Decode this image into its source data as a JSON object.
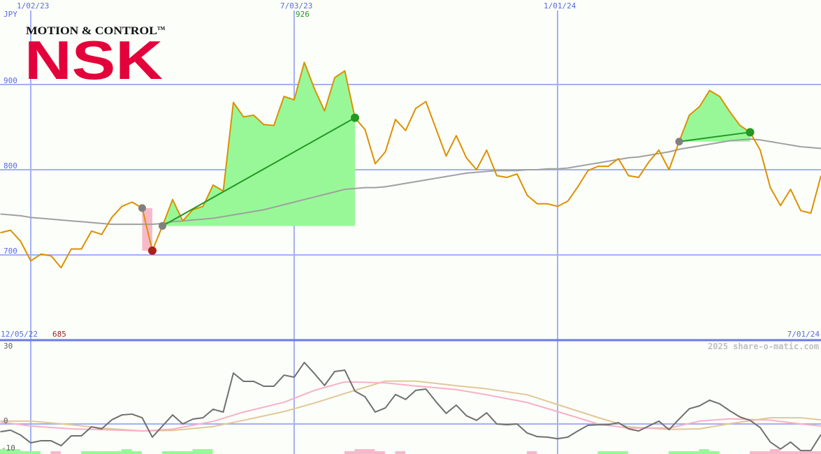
{
  "chart_data": [
    {
      "type": "line",
      "currency_label": "JPY",
      "x_tick_labels": [
        "1/02/23",
        "7/03/23",
        "1/01/24"
      ],
      "x_tick_dates": [
        "2023-01-02",
        "2023-07-03",
        "2024-01-01"
      ],
      "range_start_label": "12/05/22",
      "range_end_label": "7/01/24",
      "y_ticks": [
        900,
        800,
        700
      ],
      "ylim": [
        650,
        1000
      ],
      "grid": true,
      "high_label": "926",
      "low_label": "685",
      "dates": [
        "2022-12-12",
        "2022-12-19",
        "2022-12-26",
        "2023-01-02",
        "2023-01-09",
        "2023-01-16",
        "2023-01-23",
        "2023-01-30",
        "2023-02-06",
        "2023-02-13",
        "2023-02-20",
        "2023-02-27",
        "2023-03-06",
        "2023-03-13",
        "2023-03-20",
        "2023-03-27",
        "2023-04-03",
        "2023-04-10",
        "2023-04-17",
        "2023-04-24",
        "2023-05-01",
        "2023-05-08",
        "2023-05-15",
        "2023-05-22",
        "2023-05-29",
        "2023-06-05",
        "2023-06-12",
        "2023-06-19",
        "2023-06-26",
        "2023-07-03",
        "2023-07-10",
        "2023-07-17",
        "2023-07-24",
        "2023-07-31",
        "2023-08-07",
        "2023-08-14",
        "2023-08-21",
        "2023-08-28",
        "2023-09-04",
        "2023-09-11",
        "2023-09-18",
        "2023-09-25",
        "2023-10-02",
        "2023-10-09",
        "2023-10-16",
        "2023-10-23",
        "2023-10-30",
        "2023-11-06",
        "2023-11-13",
        "2023-11-20",
        "2023-11-27",
        "2023-12-04",
        "2023-12-11",
        "2023-12-18",
        "2023-12-25",
        "2024-01-01",
        "2024-01-08",
        "2024-01-15",
        "2024-01-22",
        "2024-01-29",
        "2024-02-05",
        "2024-02-12",
        "2024-02-19",
        "2024-02-26",
        "2024-03-04",
        "2024-03-11",
        "2024-03-18",
        "2024-03-25",
        "2024-04-01",
        "2024-04-08",
        "2024-04-15",
        "2024-04-22",
        "2024-04-29",
        "2024-05-06",
        "2024-05-13",
        "2024-05-20",
        "2024-05-27",
        "2024-06-03",
        "2024-06-10",
        "2024-06-17",
        "2024-06-24",
        "2024-07-01"
      ],
      "series": [
        {
          "role": "price",
          "color": "#dd9000",
          "values": [
            726,
            729,
            716,
            693,
            701,
            699,
            685,
            707,
            707,
            728,
            724,
            744,
            757,
            762,
            755,
            705,
            734,
            765,
            740,
            753,
            757,
            782,
            775,
            879,
            862,
            864,
            853,
            852,
            886,
            882,
            926,
            895,
            869,
            908,
            916,
            861,
            847,
            807,
            821,
            859,
            846,
            872,
            880,
            848,
            816,
            840,
            814,
            800,
            823,
            793,
            791,
            795,
            770,
            760,
            760,
            757,
            763,
            780,
            799,
            804,
            804,
            813,
            793,
            791,
            809,
            823,
            800,
            833,
            864,
            874,
            893,
            886,
            868,
            852,
            844,
            823,
            779,
            758,
            777,
            752,
            749,
            793
          ]
        },
        {
          "role": "moving-average",
          "color": "#a0a0a0",
          "values": [
            748,
            747,
            746,
            744,
            743,
            742,
            741,
            740,
            739,
            738,
            737,
            736,
            736,
            736,
            736,
            736,
            737,
            739,
            740,
            741,
            742,
            743,
            745,
            747,
            749,
            751,
            753,
            756,
            759,
            762,
            765,
            768,
            771,
            774,
            777,
            778,
            779,
            779,
            780,
            782,
            784,
            786,
            788,
            790,
            792,
            794,
            796,
            797,
            798,
            799,
            799,
            799,
            800,
            800,
            801,
            801,
            802,
            804,
            806,
            808,
            810,
            812,
            814,
            815,
            817,
            819,
            821,
            824,
            826,
            828,
            830,
            832,
            834,
            835,
            836,
            835,
            833,
            831,
            829,
            827,
            826,
            825
          ]
        }
      ],
      "trades": [
        {
          "entry_date": "2023-03-20",
          "entry_price": 755,
          "exit_date": "2023-03-27",
          "exit_price": 705,
          "result": "loss"
        },
        {
          "entry_date": "2023-04-03",
          "entry_price": 734,
          "exit_date": "2023-08-14",
          "exit_price": 861,
          "result": "win"
        },
        {
          "entry_date": "2024-03-25",
          "entry_price": 833,
          "exit_date": "2024-05-13",
          "exit_price": 844,
          "result": "win"
        }
      ],
      "colors": {
        "win_fill": "#98f898",
        "loss_fill": "#f8b8cc",
        "win_marker": "#229922",
        "loss_marker": "#aa2020",
        "entry_marker": "#808080",
        "trend_line": "#229922"
      }
    },
    {
      "type": "line",
      "y_ticks": [
        30,
        0,
        -10
      ],
      "ylim": [
        -11,
        30
      ],
      "watermark": "2025 share-o-matic.com",
      "series": [
        {
          "role": "oscillator",
          "color": "#707070",
          "values": [
            -3.0,
            -2.4,
            -4.3,
            -7.3,
            -6.5,
            -6.5,
            -8.4,
            -4.6,
            -4.6,
            -1.1,
            -1.9,
            1.6,
            3.5,
            3.8,
            2.4,
            -5.1,
            -0.8,
            3.5,
            0,
            1.9,
            2.4,
            5.7,
            4.6,
            19.7,
            16.5,
            16.5,
            14.6,
            14.6,
            18.9,
            18.1,
            23.8,
            19.5,
            14.9,
            20.3,
            20.8,
            12.7,
            10.5,
            4.6,
            6.2,
            11.4,
            9.5,
            13.0,
            13.5,
            8.6,
            4.1,
            7.3,
            3.2,
            1.4,
            4.3,
            0,
            -0.3,
            0,
            -3.5,
            -4.9,
            -5.1,
            -5.7,
            -5.1,
            -2.7,
            -0.5,
            -0.3,
            -0.3,
            0.5,
            -1.9,
            -2.7,
            -0.8,
            1.1,
            -2.2,
            1.9,
            5.9,
            7.0,
            9.2,
            7.8,
            5.1,
            2.7,
            1.4,
            -1.4,
            -7.0,
            -9.7,
            -7.0,
            -10.3,
            -10.3,
            -4.1
          ]
        },
        {
          "role": "fast-average",
          "color": "#f8b0c8",
          "dates": [
            "2022-12-12",
            "2023-01-02",
            "2023-01-30",
            "2023-02-20",
            "2023-03-20",
            "2023-04-10",
            "2023-05-08",
            "2023-05-29",
            "2023-06-26",
            "2023-07-17",
            "2023-08-07",
            "2023-09-04",
            "2023-09-25",
            "2023-10-23",
            "2023-11-13",
            "2023-12-11",
            "2024-01-01",
            "2024-01-29",
            "2024-02-19",
            "2024-03-18",
            "2024-04-08",
            "2024-04-29",
            "2024-05-27",
            "2024-06-17",
            "2024-07-01"
          ],
          "values": [
            0.8,
            -0.8,
            -1.9,
            -2.2,
            -2.7,
            -2.0,
            1.0,
            4.6,
            8.4,
            13,
            16.3,
            15.9,
            14.7,
            13.3,
            11.3,
            8.3,
            4.8,
            0,
            -1.6,
            -1.6,
            1.1,
            2.0,
            1.5,
            0,
            -0.8
          ]
        },
        {
          "role": "slow-average",
          "color": "#e0c898",
          "dates": [
            "2022-12-12",
            "2023-01-02",
            "2023-01-30",
            "2023-02-20",
            "2023-03-20",
            "2023-04-10",
            "2023-05-08",
            "2023-05-29",
            "2023-06-26",
            "2023-07-17",
            "2023-08-07",
            "2023-09-04",
            "2023-09-25",
            "2023-10-23",
            "2023-11-13",
            "2023-12-11",
            "2024-01-01",
            "2024-01-29",
            "2024-02-19",
            "2024-03-18",
            "2024-04-08",
            "2024-04-29",
            "2024-05-27",
            "2024-06-17",
            "2024-07-01"
          ],
          "values": [
            1.1,
            1.1,
            -0.3,
            -1.6,
            -2.7,
            -2.5,
            -1.0,
            1.4,
            4.8,
            8.1,
            11.8,
            16.6,
            16.6,
            14.8,
            13.6,
            11.3,
            7.5,
            2.5,
            -1.1,
            -2.1,
            -1.9,
            0.1,
            2.4,
            2.4,
            1.6
          ]
        },
        {
          "role": "signal-bars",
          "positive_color": "#98f898",
          "negative_color": "#f8b8cc",
          "values": [
            2,
            2,
            1,
            1,
            0,
            -1,
            0,
            0,
            1,
            1,
            1,
            1,
            2,
            1,
            0,
            0,
            1,
            1,
            1,
            2,
            2,
            0,
            0,
            0,
            0,
            0,
            0,
            0,
            0,
            0,
            0,
            0,
            0,
            0,
            -1,
            -2,
            -2,
            -1,
            0,
            -1,
            0,
            0,
            0,
            0,
            0,
            0,
            0,
            0,
            0,
            0,
            0,
            0,
            -1,
            0,
            0,
            0,
            0,
            0,
            0,
            1,
            1,
            1,
            0,
            0,
            0,
            0,
            1,
            1,
            1,
            2,
            1,
            0,
            0,
            0,
            -1,
            -1,
            -2,
            -1,
            -1,
            -1,
            -1,
            -1
          ]
        }
      ]
    }
  ],
  "logo": {
    "tagline": "MOTION & CONTROL™",
    "brand": "NSK",
    "color": "#e4003a"
  }
}
